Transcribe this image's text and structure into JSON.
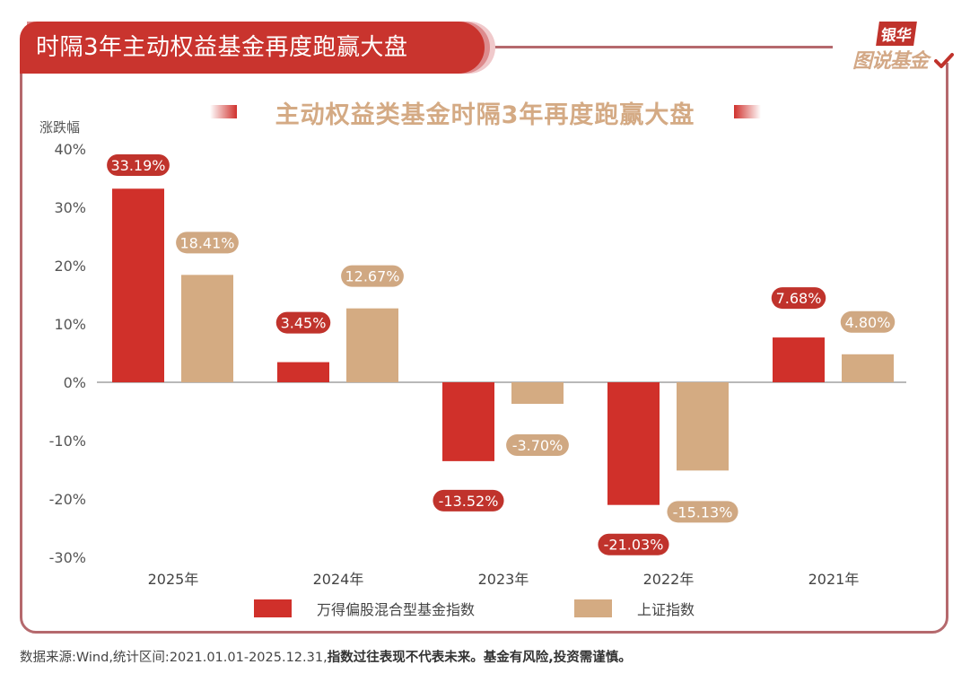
{
  "header": {
    "title": "时隔3年主动权益基金再度跑赢大盘",
    "logo_top": "银华",
    "logo_bottom": "图说基金"
  },
  "chart_data": {
    "type": "bar",
    "title": "主动权益类基金时隔3年再度跑赢大盘",
    "xlabel": "",
    "ylabel": "涨跌幅",
    "ylim": [
      -30,
      40
    ],
    "yticks": [
      40,
      30,
      20,
      10,
      0,
      -10,
      -20,
      -30
    ],
    "ytick_labels": [
      "40%",
      "30%",
      "20%",
      "10%",
      "0%",
      "-10%",
      "-20%",
      "-30%"
    ],
    "grid": false,
    "legend_position": "bottom",
    "categories": [
      "2025年",
      "2024年",
      "2023年",
      "2022年",
      "2021年"
    ],
    "series": [
      {
        "name": "万得偏股混合型基金指数",
        "color": "#d0302a",
        "label_color": "#c0332c",
        "values": [
          33.19,
          3.45,
          -13.52,
          -21.03,
          7.68
        ],
        "labels": [
          "33.19%",
          "3.45%",
          "-13.52%",
          "-21.03%",
          "7.68%"
        ]
      },
      {
        "name": "上证指数",
        "color": "#d4ab82",
        "label_color": "#d0a882",
        "values": [
          18.41,
          12.67,
          -3.7,
          -15.13,
          4.8
        ],
        "labels": [
          "18.41%",
          "12.67%",
          "-3.70%",
          "-15.13%",
          "4.80%"
        ]
      }
    ]
  },
  "footer": {
    "source": "数据来源:Wind,统计区间:2021.01.01-2025.12.31,",
    "disclaimer": "指数过往表现不代表未来。基金有风险,投资需谨慎。"
  }
}
